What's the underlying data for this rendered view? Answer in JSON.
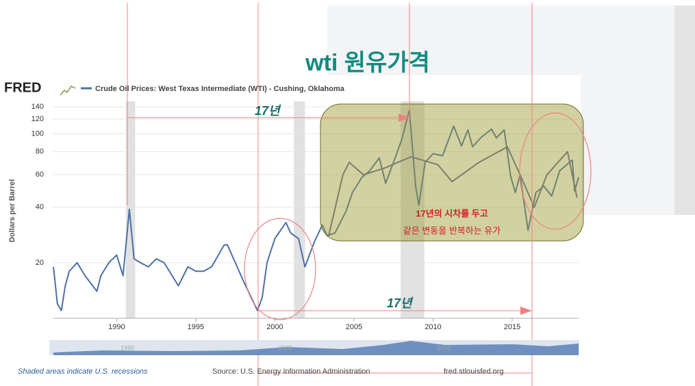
{
  "chart_data": {
    "type": "line",
    "title": "wti 원유가격",
    "brand": "FRED",
    "y_label": "Dollars per Barrel",
    "log_scale": true,
    "grid": true,
    "xlim": [
      1986,
      2019.2
    ],
    "ylim": [
      10,
      150
    ],
    "xticks": [
      1990,
      1995,
      2000,
      2005,
      2010,
      2015
    ],
    "yticks": [
      20,
      40,
      60,
      80,
      100,
      120,
      140
    ],
    "recession_color": "#e1e1e1",
    "recessions": [
      [
        1990.58,
        1991.17
      ],
      [
        2001.2,
        2001.9
      ],
      [
        2007.95,
        2009.45
      ]
    ],
    "series": [
      {
        "name": "Crude Oil Prices: West Texas Intermediate (WTI) - Cushing, Oklahoma",
        "color": "#4a6fa5",
        "x": [
          1986.0,
          1986.25,
          1986.5,
          1986.75,
          1987.0,
          1987.5,
          1988.0,
          1988.75,
          1989.0,
          1989.5,
          1990.0,
          1990.4,
          1990.8,
          1991.1,
          1991.5,
          1992.0,
          1992.5,
          1993.0,
          1993.9,
          1994.5,
          1995.0,
          1995.5,
          1996.0,
          1996.8,
          1997.0,
          1997.5,
          1998.0,
          1998.9,
          1999.2,
          1999.5,
          2000.0,
          2000.7,
          2001.0,
          2001.5,
          2001.9,
          2002.5,
          2003.0,
          2003.3,
          2003.8,
          2004.5,
          2004.9,
          2005.5,
          2006.0,
          2006.6,
          2007.0,
          2007.5,
          2008.0,
          2008.5,
          2008.9,
          2009.1,
          2009.5,
          2010.0,
          2010.6,
          2011.3,
          2011.8,
          2012.2,
          2012.5,
          2013.0,
          2013.7,
          2014.0,
          2014.5,
          2014.9,
          2015.2,
          2015.5,
          2016.0,
          2016.5,
          2017.0,
          2017.5,
          2018.0,
          2018.8,
          2018.95,
          2019.2
        ],
        "values": [
          19,
          12,
          11,
          15,
          18,
          20,
          17,
          14,
          17,
          20,
          22,
          17,
          39,
          21,
          20,
          19,
          21,
          20,
          15,
          19,
          18,
          18,
          19,
          25,
          25,
          20,
          16,
          11,
          13,
          20,
          27,
          33,
          29,
          27,
          19,
          26,
          32,
          28,
          29,
          38,
          48,
          58,
          63,
          74,
          54,
          70,
          92,
          134,
          52,
          41,
          70,
          78,
          76,
          110,
          86,
          105,
          85,
          95,
          106,
          95,
          105,
          59,
          48,
          60,
          30,
          48,
          52,
          46,
          63,
          72,
          49,
          58
        ]
      },
      {
        "color": "#7d7d6a",
        "x": [
          2003.4,
          2004.3,
          2004.7,
          2005.6,
          2006.9,
          2008.6,
          2010.3,
          2011.2,
          2012.9,
          2014.7,
          2015.5,
          2016.4,
          2017.2,
          2018.5,
          2019.1
        ],
        "values": [
          28,
          60,
          70,
          60,
          65,
          75,
          68,
          55,
          70,
          85,
          60,
          40,
          60,
          80,
          45
        ]
      }
    ],
    "annotations": [
      "17년",
      "17년",
      "17년의 시차를 두고",
      "같은 변동을 반복하는 유가"
    ],
    "navigator_labels": [
      "1990",
      "2000",
      "2010"
    ],
    "footer": {
      "note": "Shaded areas indicate U.S. recessions",
      "source": "Source: U.S. Energy Information Administration",
      "site": "fred.stlouisfed.org"
    }
  }
}
